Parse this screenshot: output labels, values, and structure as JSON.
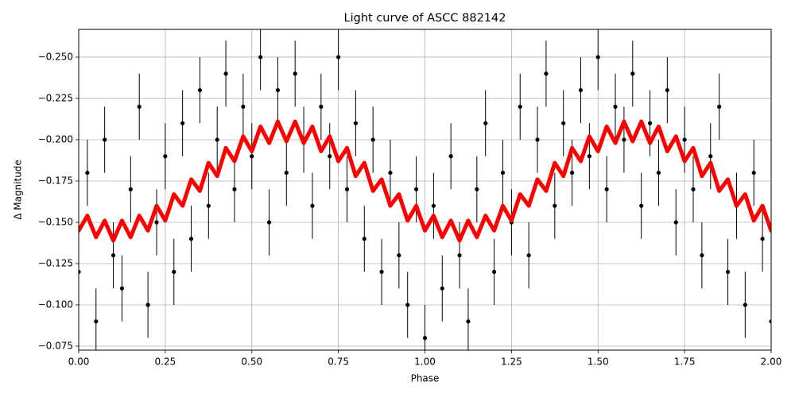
{
  "chart_data": {
    "type": "line",
    "title": "Light curve of ASCC 882142",
    "x_label": "Phase",
    "y_label": "Δ Magnitude",
    "x": [
      0,
      0.025,
      0.05,
      0.075,
      0.1,
      0.125,
      0.15,
      0.175,
      0.2,
      0.225,
      0.25,
      0.275,
      0.3,
      0.325,
      0.35,
      0.375,
      0.4,
      0.425,
      0.45,
      0.475,
      0.5,
      0.525,
      0.55,
      0.575,
      0.6,
      0.625,
      0.65,
      0.675,
      0.7,
      0.725,
      0.75,
      0.775,
      0.8,
      0.825,
      0.85,
      0.875,
      0.9,
      0.925,
      0.95,
      0.975,
      1.0,
      1.025,
      1.05,
      1.075,
      1.1,
      1.125,
      1.15,
      1.175,
      1.2,
      1.225,
      1.25,
      1.275,
      1.3,
      1.325,
      1.35,
      1.375,
      1.4,
      1.425,
      1.45,
      1.475,
      1.5,
      1.525,
      1.55,
      1.575,
      1.6,
      1.625,
      1.65,
      1.675,
      1.7,
      1.725,
      1.75,
      1.775,
      1.8,
      1.825,
      1.85,
      1.875,
      1.9,
      1.925,
      1.95,
      1.975,
      2.0
    ],
    "series": [
      {
        "style": "errorbar",
        "color": "#000000",
        "yerr": 0.02,
        "values": [
          -0.12,
          -0.18,
          -0.09,
          -0.2,
          -0.13,
          -0.11,
          -0.17,
          -0.22,
          -0.1,
          -0.15,
          -0.19,
          -0.12,
          -0.21,
          -0.14,
          -0.23,
          -0.16,
          -0.2,
          -0.24,
          -0.17,
          -0.22,
          -0.19,
          -0.25,
          -0.15,
          -0.23,
          -0.18,
          -0.24,
          -0.2,
          -0.16,
          -0.22,
          -0.19,
          -0.25,
          -0.17,
          -0.21,
          -0.14,
          -0.2,
          -0.12,
          -0.18,
          -0.13,
          -0.1,
          -0.17,
          -0.08,
          -0.16,
          -0.11,
          -0.19,
          -0.13,
          -0.09,
          -0.17,
          -0.21,
          -0.12,
          -0.18,
          -0.15,
          -0.22,
          -0.13,
          -0.2,
          -0.24,
          -0.16,
          -0.21,
          -0.18,
          -0.23,
          -0.19,
          -0.25,
          -0.17,
          -0.22,
          -0.2,
          -0.24,
          -0.16,
          -0.21,
          -0.18,
          -0.23,
          -0.15,
          -0.2,
          -0.17,
          -0.13,
          -0.19,
          -0.22,
          -0.12,
          -0.16,
          -0.1,
          -0.18,
          -0.14,
          -0.09
        ]
      },
      {
        "style": "line",
        "color": "#ff0000",
        "values": [
          -0.145,
          -0.154,
          -0.141,
          -0.151,
          -0.139,
          -0.151,
          -0.141,
          -0.154,
          -0.145,
          -0.16,
          -0.151,
          -0.167,
          -0.16,
          -0.176,
          -0.169,
          -0.186,
          -0.178,
          -0.195,
          -0.187,
          -0.202,
          -0.193,
          -0.208,
          -0.198,
          -0.211,
          -0.199,
          -0.211,
          -0.198,
          -0.208,
          -0.193,
          -0.202,
          -0.187,
          -0.195,
          -0.178,
          -0.186,
          -0.169,
          -0.176,
          -0.16,
          -0.167,
          -0.151,
          -0.16,
          -0.145,
          -0.154,
          -0.141,
          -0.151,
          -0.139,
          -0.151,
          -0.141,
          -0.154,
          -0.145,
          -0.16,
          -0.151,
          -0.167,
          -0.16,
          -0.176,
          -0.169,
          -0.186,
          -0.178,
          -0.195,
          -0.187,
          -0.202,
          -0.193,
          -0.208,
          -0.198,
          -0.211,
          -0.199,
          -0.211,
          -0.198,
          -0.208,
          -0.193,
          -0.202,
          -0.187,
          -0.195,
          -0.178,
          -0.186,
          -0.169,
          -0.176,
          -0.16,
          -0.167,
          -0.151,
          -0.16,
          -0.145
        ]
      }
    ],
    "xlim": [
      0,
      2
    ],
    "ylim": [
      -0.0726,
      -0.2668
    ],
    "xticks": [
      {
        "value": 0,
        "label": "0.00"
      },
      {
        "value": 0.25,
        "label": "0.25"
      },
      {
        "value": 0.5,
        "label": "0.50"
      },
      {
        "value": 0.75,
        "label": "0.75"
      },
      {
        "value": 1,
        "label": "1.00"
      },
      {
        "value": 1.25,
        "label": "1.25"
      },
      {
        "value": 1.5,
        "label": "1.50"
      },
      {
        "value": 1.75,
        "label": "1.75"
      },
      {
        "value": 2,
        "label": "2.00"
      }
    ],
    "yticks": [
      {
        "value": -0.25,
        "label": "−0.250"
      },
      {
        "value": -0.225,
        "label": "−0.225"
      },
      {
        "value": -0.2,
        "label": "−0.200"
      },
      {
        "value": -0.175,
        "label": "−0.175"
      },
      {
        "value": -0.15,
        "label": "−0.150"
      },
      {
        "value": -0.125,
        "label": "−0.125"
      },
      {
        "value": -0.1,
        "label": "−0.100"
      },
      {
        "value": -0.075,
        "label": "−0.075"
      }
    ],
    "grid": true
  }
}
